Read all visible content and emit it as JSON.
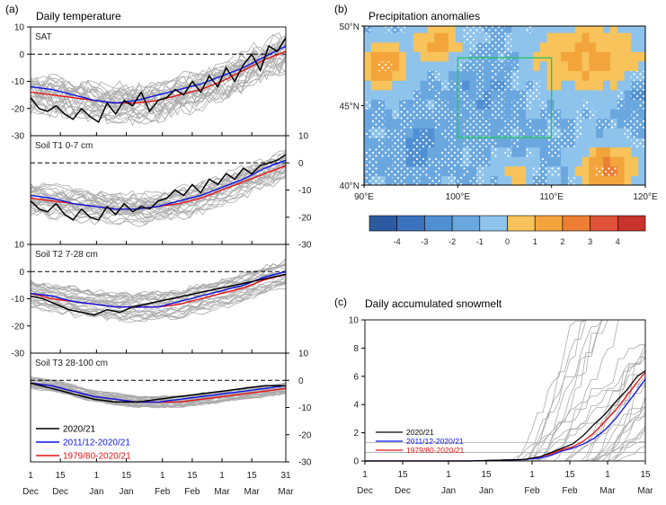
{
  "panel_a": {
    "label": "(a)",
    "title": "Daily temperature",
    "x_ticks": [
      {
        "day": 1,
        "top": "1",
        "bottom": "Dec"
      },
      {
        "day": 15,
        "top": "15",
        "bottom": "Dec"
      },
      {
        "day": 32,
        "top": "1",
        "bottom": "Jan"
      },
      {
        "day": 46,
        "top": "15",
        "bottom": "Jan"
      },
      {
        "day": 63,
        "top": "1",
        "bottom": "Feb"
      },
      {
        "day": 77,
        "top": "15",
        "bottom": "Feb"
      },
      {
        "day": 91,
        "top": "1",
        "bottom": "Mar"
      },
      {
        "day": 105,
        "top": "15",
        "bottom": "Mar"
      },
      {
        "day": 121,
        "top": "31",
        "bottom": "Mar"
      }
    ],
    "legend": [
      {
        "name": "2020/21",
        "color": "#000000"
      },
      {
        "name": "2011/12-2020/21",
        "color": "#0a14e6"
      },
      {
        "name": "1979/80-2020/21",
        "color": "#e61414"
      }
    ],
    "reference_color": "#aaaaaa"
  },
  "chart_data": [
    {
      "type": "line",
      "panel": "a",
      "label": "SAT",
      "x_unit": "day since 30 Nov",
      "ylim": [
        -30,
        10
      ],
      "yticks": [
        10,
        0,
        -10,
        -20,
        -30
      ],
      "reference_line": 0,
      "series": [
        {
          "name": "2020/21",
          "x": [
            1,
            5,
            9,
            13,
            17,
            21,
            25,
            29,
            33,
            37,
            41,
            45,
            49,
            53,
            57,
            61,
            65,
            69,
            73,
            77,
            81,
            85,
            89,
            93,
            97,
            101,
            105,
            109,
            113,
            117,
            121
          ],
          "y": [
            -16,
            -20,
            -21,
            -19,
            -22,
            -24,
            -20,
            -23,
            -25,
            -18,
            -22,
            -17,
            -19,
            -14,
            -21,
            -17,
            -16,
            -13,
            -15,
            -10,
            -14,
            -8,
            -12,
            -5,
            -10,
            -4,
            0,
            -6,
            3,
            1,
            6
          ]
        },
        {
          "name": "2011/12-2020/21",
          "x": [
            1,
            11,
            21,
            31,
            41,
            51,
            61,
            71,
            81,
            91,
            101,
            111,
            121
          ],
          "y": [
            -12,
            -13,
            -15,
            -17,
            -18,
            -17,
            -15,
            -13,
            -11,
            -8,
            -5,
            -1,
            3
          ]
        },
        {
          "name": "1979/80-2020/21",
          "x": [
            1,
            11,
            21,
            31,
            41,
            51,
            61,
            71,
            81,
            91,
            101,
            111,
            121
          ],
          "y": [
            -14,
            -15,
            -16,
            -17,
            -18,
            -18,
            -17,
            -15,
            -13,
            -10,
            -6,
            -2,
            1
          ]
        }
      ]
    },
    {
      "type": "line",
      "panel": "a",
      "label": "Soil T1 0-7 cm",
      "x_unit": "day since 30 Nov",
      "ylim": [
        -30,
        10
      ],
      "yticks": [
        10,
        0,
        -10,
        -20,
        -30
      ],
      "reference_line": 0,
      "series": [
        {
          "name": "2020/21",
          "x": [
            1,
            5,
            9,
            13,
            17,
            21,
            25,
            29,
            33,
            37,
            41,
            45,
            49,
            53,
            57,
            61,
            65,
            69,
            73,
            77,
            81,
            85,
            89,
            93,
            97,
            101,
            105,
            109,
            113,
            117,
            121
          ],
          "y": [
            -14,
            -17,
            -18,
            -15,
            -19,
            -21,
            -17,
            -20,
            -21,
            -16,
            -19,
            -15,
            -18,
            -16,
            -17,
            -14,
            -13,
            -10,
            -12,
            -8,
            -11,
            -6,
            -8,
            -4,
            -6,
            -2,
            -4,
            -1,
            0,
            1,
            3
          ]
        },
        {
          "name": "2011/12-2020/21",
          "x": [
            1,
            11,
            21,
            31,
            41,
            51,
            61,
            71,
            81,
            91,
            101,
            111,
            121
          ],
          "y": [
            -12,
            -13,
            -15,
            -16,
            -17,
            -17,
            -16,
            -14,
            -12,
            -9,
            -6,
            -2,
            1
          ]
        },
        {
          "name": "1979/80-2020/21",
          "x": [
            1,
            11,
            21,
            31,
            41,
            51,
            61,
            71,
            81,
            91,
            101,
            111,
            121
          ],
          "y": [
            -13,
            -14,
            -15,
            -16,
            -17,
            -17,
            -16,
            -15,
            -13,
            -10,
            -7,
            -4,
            -1
          ]
        }
      ]
    },
    {
      "type": "line",
      "panel": "a",
      "label": "Soil T2 7-28 cm",
      "x_unit": "day since 30 Nov",
      "ylim": [
        -30,
        10
      ],
      "yticks": [
        10,
        0,
        -10,
        -20,
        -30
      ],
      "reference_line": 0,
      "series": [
        {
          "name": "2020/21",
          "x": [
            1,
            7,
            13,
            19,
            25,
            31,
            37,
            43,
            49,
            55,
            61,
            67,
            73,
            79,
            85,
            91,
            97,
            103,
            109,
            115,
            121
          ],
          "y": [
            -9,
            -10,
            -12,
            -14,
            -15,
            -16,
            -14,
            -15,
            -13,
            -12,
            -11,
            -10,
            -9,
            -8,
            -7,
            -6,
            -5,
            -4,
            -3,
            -2,
            -1
          ]
        },
        {
          "name": "2011/12-2020/21",
          "x": [
            1,
            11,
            21,
            31,
            41,
            51,
            61,
            71,
            81,
            91,
            101,
            111,
            121
          ],
          "y": [
            -8,
            -9,
            -11,
            -12,
            -13,
            -13,
            -13,
            -11,
            -9,
            -7,
            -5,
            -2,
            0
          ]
        },
        {
          "name": "1979/80-2020/21",
          "x": [
            1,
            11,
            21,
            31,
            41,
            51,
            61,
            71,
            81,
            91,
            101,
            111,
            121
          ],
          "y": [
            -8,
            -10,
            -11,
            -12,
            -13,
            -13,
            -13,
            -12,
            -10,
            -8,
            -6,
            -3,
            -1
          ]
        }
      ]
    },
    {
      "type": "line",
      "panel": "a",
      "label": "Soil T3 28-100 cm",
      "x_unit": "day since 30 Nov",
      "ylim": [
        -30,
        10
      ],
      "yticks": [
        10,
        0,
        -10,
        -20,
        -30
      ],
      "reference_line": 0,
      "series": [
        {
          "name": "2020/21",
          "x": [
            1,
            11,
            21,
            31,
            41,
            51,
            61,
            71,
            81,
            91,
            101,
            111,
            121
          ],
          "y": [
            -1,
            -3,
            -5,
            -7,
            -8,
            -8,
            -7,
            -6,
            -5,
            -4,
            -3,
            -2,
            -2
          ]
        },
        {
          "name": "2011/12-2020/21",
          "x": [
            1,
            11,
            21,
            31,
            41,
            51,
            61,
            71,
            81,
            91,
            101,
            111,
            121
          ],
          "y": [
            -1,
            -2,
            -4,
            -6,
            -7,
            -8,
            -8,
            -7,
            -6,
            -5,
            -4,
            -3,
            -2
          ]
        },
        {
          "name": "1979/80-2020/21",
          "x": [
            1,
            11,
            21,
            31,
            41,
            51,
            61,
            71,
            81,
            91,
            101,
            111,
            121
          ],
          "y": [
            -1,
            -2,
            -4,
            -6,
            -7,
            -8,
            -8,
            -8,
            -7,
            -6,
            -5,
            -4,
            -3
          ]
        }
      ]
    },
    {
      "type": "heatmap",
      "panel": "b",
      "label": "(b)",
      "title": "Precipitation anomalies",
      "xticks": [
        "90°E",
        "100°E",
        "110°E",
        "120°E"
      ],
      "yticks": [
        "50°N",
        "45°N",
        "40°N"
      ],
      "xlim_deg": [
        90,
        120
      ],
      "ylim_deg": [
        40,
        50
      ],
      "colorbar": {
        "ticks": [
          "-4",
          "-3",
          "-2",
          "-1",
          "0",
          "1",
          "2",
          "3",
          "4"
        ],
        "colors": [
          "#2c5aa0",
          "#3a72bd",
          "#4f8fd2",
          "#6aa7df",
          "#8ec3ec",
          "#f7c35a",
          "#f3a53c",
          "#ec7d33",
          "#e0523a",
          "#c8332b"
        ]
      },
      "box_color": "#22c55e",
      "box_lon": [
        100,
        110
      ],
      "box_lat": [
        43,
        48
      ]
    },
    {
      "type": "line",
      "panel": "c",
      "label": "(c)",
      "title": "Daily accumulated snowmelt",
      "x_unit": "day since 30 Nov",
      "ylim": [
        0,
        10
      ],
      "yticks": [
        0,
        2,
        4,
        6,
        8,
        10
      ],
      "x_ticks": [
        {
          "day": 1,
          "top": "1",
          "bottom": "Dec"
        },
        {
          "day": 15,
          "top": "15",
          "bottom": "Dec"
        },
        {
          "day": 32,
          "top": "1",
          "bottom": "Jan"
        },
        {
          "day": 46,
          "top": "15",
          "bottom": "Jan"
        },
        {
          "day": 63,
          "top": "1",
          "bottom": "Feb"
        },
        {
          "day": 77,
          "top": "15",
          "bottom": "Feb"
        },
        {
          "day": 91,
          "top": "1",
          "bottom": "Mar"
        },
        {
          "day": 105,
          "top": "15",
          "bottom": "Mar"
        }
      ],
      "series": [
        {
          "name": "2020/21",
          "x": [
            1,
            40,
            60,
            66,
            70,
            74,
            78,
            82,
            86,
            90,
            94,
            98,
            102,
            105
          ],
          "y": [
            0,
            0,
            0.1,
            0.3,
            0.6,
            0.9,
            1.2,
            1.8,
            2.6,
            3.3,
            4.2,
            5.0,
            6.0,
            6.4
          ]
        },
        {
          "name": "2011/12-2020/21",
          "x": [
            1,
            40,
            60,
            66,
            70,
            74,
            78,
            82,
            86,
            90,
            94,
            98,
            102,
            105
          ],
          "y": [
            0,
            0,
            0.1,
            0.2,
            0.4,
            0.7,
            0.9,
            1.2,
            1.6,
            2.2,
            3.0,
            4.0,
            5.0,
            5.8
          ]
        },
        {
          "name": "1979/80-2020/21",
          "x": [
            1,
            40,
            60,
            66,
            70,
            74,
            78,
            82,
            86,
            90,
            94,
            98,
            102,
            105
          ],
          "y": [
            0,
            0,
            0.1,
            0.3,
            0.5,
            0.8,
            1.0,
            1.4,
            2.0,
            2.8,
            3.6,
            4.6,
            5.6,
            6.3
          ]
        }
      ]
    }
  ]
}
